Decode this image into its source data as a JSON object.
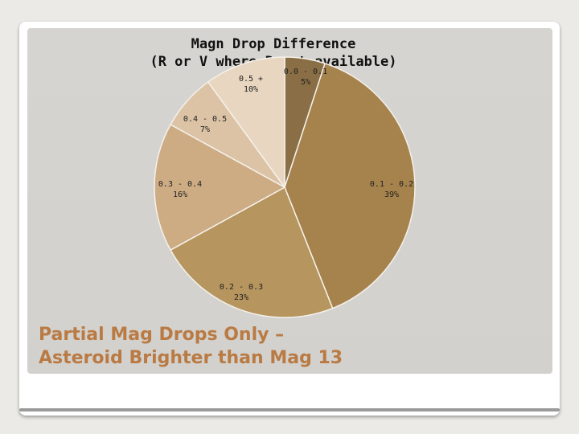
{
  "slide": {
    "caption_line1": "Partial Mag Drops Only –",
    "caption_line2": "Asteroid Brighter than Mag 13"
  },
  "chart_data": {
    "type": "pie",
    "title_line1": "Magn Drop Difference",
    "title_line2": "(R or V where R not available)",
    "slices": [
      {
        "label": "0.0 - 0.1",
        "percent_label": "5%",
        "value": 5,
        "color": "#8a6e45"
      },
      {
        "label": "0.1 - 0.2",
        "percent_label": "39%",
        "value": 39,
        "color": "#a6834c"
      },
      {
        "label": "0.2 - 0.3",
        "percent_label": "23%",
        "value": 23,
        "color": "#b7955e"
      },
      {
        "label": "0.3 - 0.4",
        "percent_label": "16%",
        "value": 16,
        "color": "#cdac84"
      },
      {
        "label": "0.4 - 0.5",
        "percent_label": "7%",
        "value": 7,
        "color": "#dcc3a5"
      },
      {
        "label": "0.5 +",
        "percent_label": "10%",
        "value": 10,
        "color": "#e8d6c1"
      }
    ]
  },
  "colors": {
    "caption": "#b97a43",
    "panel": "#d5d3cf"
  }
}
